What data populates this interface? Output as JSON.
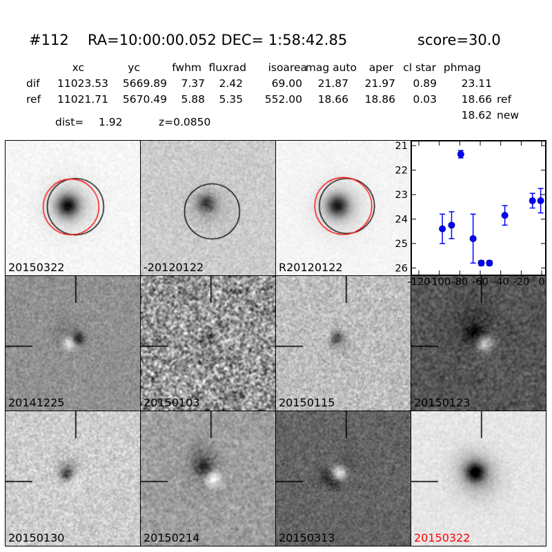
{
  "title": {
    "id": "#112",
    "coords": "RA=10:00:00.052 DEC= 1:58:42.85",
    "score": "score=30.0"
  },
  "table": {
    "headers": [
      "xc",
      "yc",
      "fwhm",
      "fluxrad",
      "isoarea",
      "mag auto",
      "aper",
      "cl star",
      "phmag"
    ],
    "rows": [
      {
        "label": "dif",
        "values": [
          "11023.53",
          "5669.89",
          "7.37",
          "2.42",
          "69.00",
          "21.87",
          "21.97",
          "0.89",
          "23.11"
        ],
        "suffix": ""
      },
      {
        "label": "ref",
        "values": [
          "11021.71",
          "5670.49",
          "5.88",
          "5.35",
          "552.00",
          "18.66",
          "18.86",
          "0.03",
          "18.66"
        ],
        "suffix": "ref"
      }
    ],
    "extra_phmag": {
      "value": "18.62",
      "suffix": "new"
    },
    "dist_label": "dist=",
    "dist_value": "1.92",
    "z_value": "z=0.0850"
  },
  "chart_data": {
    "type": "scatter",
    "title": "",
    "xlabel": "",
    "ylabel": "",
    "x": [
      -97,
      -88,
      -79,
      -67,
      -59,
      -51,
      -36,
      -9,
      -1
    ],
    "mag": [
      24.4,
      24.25,
      21.35,
      24.8,
      25.8,
      25.8,
      23.85,
      23.25,
      23.25
    ],
    "err": [
      0.6,
      0.55,
      0.15,
      1.0,
      0.1,
      0.1,
      0.4,
      0.3,
      0.5
    ],
    "xlim": [
      -127.4,
      4.0
    ],
    "ylim": [
      20.8,
      26.3
    ],
    "y_axis_inverted": true,
    "xticks": [
      -120,
      -100,
      -80,
      -60,
      -40,
      -20,
      0
    ],
    "xtick_labels": [
      "-120",
      "-100",
      "-80",
      "-60",
      "-40",
      "-20",
      "0"
    ],
    "yticks": [
      21,
      22,
      23,
      24,
      25,
      26
    ],
    "ytick_labels": [
      "21",
      "22",
      "23",
      "24",
      "25",
      "26"
    ],
    "grid": false,
    "legend": null,
    "marker_color": "#0000ff",
    "axis_color": "#000000"
  },
  "cutouts": [
    {
      "label": "20150322",
      "label_color": "#000000",
      "base": 246,
      "noise": 5,
      "smooth": 1,
      "blobs": [
        [
          0.46,
          0.48,
          0.055,
          -185
        ],
        [
          0.47,
          0.48,
          0.12,
          -55
        ]
      ],
      "circles": [
        [
          0.52,
          0.49,
          0.21,
          "#000000"
        ],
        [
          0.487,
          0.492,
          0.207,
          "#ff0000"
        ]
      ],
      "crosshair": false
    },
    {
      "label": "-20120122",
      "label_color": "#000000",
      "base": 204,
      "noise": 11,
      "smooth": 1,
      "blobs": [
        [
          0.485,
          0.46,
          0.045,
          -120
        ],
        [
          0.5,
          0.49,
          0.1,
          -35
        ]
      ],
      "circles": [
        [
          0.53,
          0.525,
          0.205,
          "#000000"
        ]
      ],
      "crosshair": false
    },
    {
      "label": "R20120122",
      "label_color": "#000000",
      "base": 245,
      "noise": 4,
      "smooth": 1,
      "blobs": [
        [
          0.455,
          0.48,
          0.055,
          -175
        ],
        [
          0.47,
          0.49,
          0.12,
          -50
        ]
      ],
      "circles": [
        [
          0.527,
          0.485,
          0.205,
          "#000000"
        ],
        [
          0.5,
          0.485,
          0.212,
          "#ff0000"
        ]
      ],
      "crosshair": false
    },
    {
      "label": "20141225",
      "label_color": "#000000",
      "base": 145,
      "noise": 13,
      "smooth": 1,
      "blobs": [
        [
          0.54,
          0.465,
          0.032,
          -120
        ],
        [
          0.475,
          0.5,
          0.035,
          95
        ],
        [
          0.44,
          0.42,
          0.07,
          -22
        ]
      ],
      "circles": [],
      "crosshair": true
    },
    {
      "label": "20150103",
      "label_color": "#000000",
      "base": 150,
      "noise": 45,
      "smooth": 2,
      "blobs": [
        [
          0.5,
          0.44,
          0.04,
          -75
        ]
      ],
      "circles": [],
      "crosshair": true
    },
    {
      "label": "20150115",
      "label_color": "#000000",
      "base": 190,
      "noise": 18,
      "smooth": 1,
      "blobs": [
        [
          0.445,
          0.455,
          0.035,
          -110
        ],
        [
          0.39,
          0.435,
          0.022,
          45
        ],
        [
          0.47,
          0.5,
          0.06,
          -25
        ]
      ],
      "circles": [],
      "crosshair": true
    },
    {
      "label": "20150123",
      "label_color": "#000000",
      "base": 86,
      "noise": 10,
      "smooth": 2,
      "blobs": [
        [
          0.47,
          0.42,
          0.05,
          -55
        ],
        [
          0.545,
          0.5,
          0.045,
          115
        ],
        [
          0.47,
          0.36,
          0.12,
          -28
        ]
      ],
      "circles": [],
      "crosshair": true
    },
    {
      "label": "20150130",
      "label_color": "#000000",
      "base": 205,
      "noise": 16,
      "smooth": 1,
      "blobs": [
        [
          0.45,
          0.465,
          0.035,
          -120
        ],
        [
          0.46,
          0.41,
          0.06,
          -35
        ],
        [
          0.52,
          0.52,
          0.05,
          25
        ]
      ],
      "circles": [],
      "crosshair": true
    },
    {
      "label": "20150214",
      "label_color": "#000000",
      "base": 158,
      "noise": 10,
      "smooth": 2,
      "blobs": [
        [
          0.47,
          0.42,
          0.045,
          -90
        ],
        [
          0.44,
          0.33,
          0.07,
          -40
        ],
        [
          0.535,
          0.5,
          0.042,
          110
        ],
        [
          0.47,
          0.47,
          0.1,
          -20
        ]
      ],
      "circles": [],
      "crosshair": true
    },
    {
      "label": "20150313",
      "label_color": "#000000",
      "base": 100,
      "noise": 14,
      "smooth": 1,
      "blobs": [
        [
          0.465,
          0.455,
          0.04,
          130
        ],
        [
          0.385,
          0.48,
          0.045,
          -55
        ],
        [
          0.44,
          0.54,
          0.03,
          -45
        ],
        [
          0.52,
          0.38,
          0.05,
          -20
        ]
      ],
      "circles": [],
      "crosshair": true
    },
    {
      "label": "20150322",
      "label_color": "#ff0000",
      "base": 230,
      "noise": 7,
      "smooth": 1,
      "blobs": [
        [
          0.475,
          0.45,
          0.05,
          -185
        ],
        [
          0.5,
          0.49,
          0.11,
          -60
        ],
        [
          0.42,
          0.38,
          0.09,
          -25
        ]
      ],
      "circles": [],
      "crosshair": true
    }
  ]
}
